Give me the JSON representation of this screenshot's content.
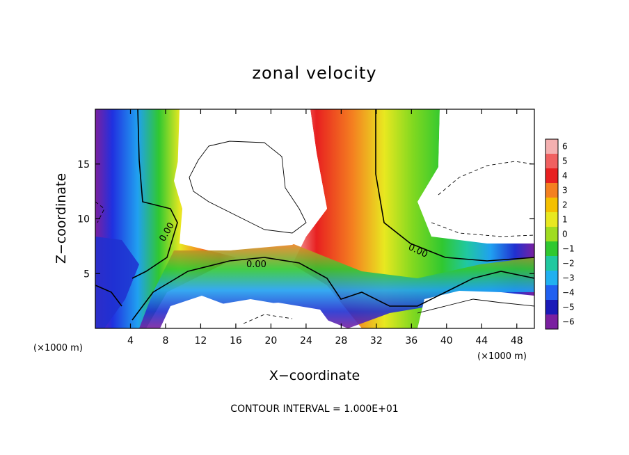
{
  "chart_data": {
    "type": "heatmap",
    "title": "zonal velocity",
    "xlabel": "X−coordinate",
    "ylabel": "Z−coordinate",
    "x_unit_left": "(×1000 m)",
    "x_unit_right": "(×1000 m)",
    "footer": "CONTOUR INTERVAL = 1.000E+01",
    "xlim": [
      0,
      50
    ],
    "ylim": [
      0,
      20
    ],
    "x_ticks": [
      4,
      8,
      12,
      16,
      20,
      24,
      28,
      32,
      36,
      40,
      44,
      48
    ],
    "y_ticks": [
      5,
      10,
      15
    ],
    "contour_labels": [
      "0.00",
      "0.00",
      "0.00"
    ],
    "colorbar": {
      "levels": [
        "6",
        "5",
        "4",
        "3",
        "2",
        "1",
        "0",
        "−1",
        "−2",
        "−3",
        "−4",
        "−5",
        "−6"
      ],
      "colors": [
        "#f4b0b0",
        "#f06060",
        "#e82020",
        "#f48020",
        "#f4c000",
        "#e8e820",
        "#a0dc20",
        "#30c830",
        "#20c8a0",
        "#20b0f0",
        "#2060f0",
        "#1a1ab8",
        "#7a20a0"
      ]
    }
  }
}
